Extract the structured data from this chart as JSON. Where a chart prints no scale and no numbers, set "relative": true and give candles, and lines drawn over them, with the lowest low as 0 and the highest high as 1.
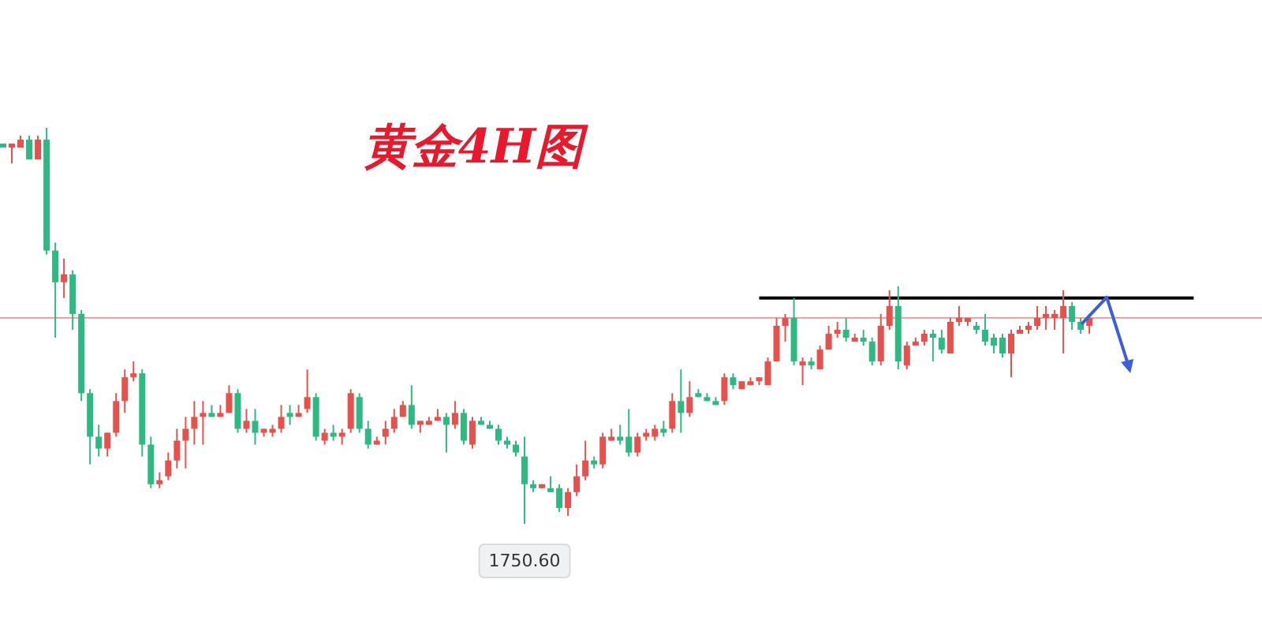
{
  "chart_data": {
    "type": "candlestick",
    "title": "黄金4H图",
    "relative": true,
    "categories": [
      null,
      null,
      null,
      null,
      null,
      null,
      null,
      null,
      null,
      null,
      null,
      null,
      null,
      null,
      null,
      null,
      null,
      null,
      null,
      null,
      null,
      null,
      null,
      null,
      null,
      null,
      null,
      null,
      null,
      null,
      null,
      null,
      null,
      null,
      null,
      null,
      null,
      null,
      null,
      null,
      null,
      null,
      null,
      null,
      null,
      null,
      null,
      null,
      null,
      null,
      null,
      null,
      null,
      null,
      null,
      null,
      null,
      null,
      null,
      null,
      null,
      null,
      null,
      null,
      null,
      null,
      null,
      null,
      null,
      null,
      null,
      null,
      null,
      null,
      null,
      null,
      null,
      null,
      null,
      null,
      null,
      null,
      null,
      null,
      null,
      null,
      null,
      null,
      null,
      null,
      null,
      null,
      null,
      null,
      null,
      null,
      null,
      null,
      null,
      null,
      null,
      null,
      null,
      null,
      null,
      null,
      null,
      null,
      null,
      null,
      null,
      null,
      null,
      null,
      null,
      null,
      null,
      null,
      null,
      null,
      null,
      null,
      null,
      null,
      null,
      null
    ],
    "ohlc": [
      [
        0.96,
        0.96,
        0.95,
        0.95
      ],
      [
        0.95,
        0.96,
        0.91,
        0.96
      ],
      [
        0.95,
        0.98,
        0.95,
        0.97
      ],
      [
        0.97,
        0.98,
        0.92,
        0.92
      ],
      [
        0.92,
        0.98,
        0.92,
        0.97
      ],
      [
        0.97,
        1,
        0.68,
        0.69
      ],
      [
        0.69,
        0.71,
        0.47,
        0.61
      ],
      [
        0.61,
        0.67,
        0.57,
        0.63
      ],
      [
        0.63,
        0.64,
        0.49,
        0.53
      ],
      [
        0.53,
        0.54,
        0.31,
        0.33
      ],
      [
        0.33,
        0.34,
        0.15,
        0.22
      ],
      [
        0.22,
        0.25,
        0.17,
        0.19
      ],
      [
        0.19,
        0.23,
        0.17,
        0.23
      ],
      [
        0.23,
        0.33,
        0.22,
        0.31
      ],
      [
        0.31,
        0.39,
        0.28,
        0.37
      ],
      [
        0.37,
        0.41,
        0.36,
        0.38
      ],
      [
        0.38,
        0.39,
        0.17,
        0.2
      ],
      [
        0.2,
        0.22,
        0.09,
        0.1
      ],
      [
        0.1,
        0.13,
        0.09,
        0.11
      ],
      [
        0.12,
        0.18,
        0.11,
        0.16
      ],
      [
        0.16,
        0.24,
        0.14,
        0.21
      ],
      [
        0.21,
        0.27,
        0.14,
        0.24
      ],
      [
        0.24,
        0.31,
        0.2,
        0.27
      ],
      [
        0.27,
        0.31,
        0.2,
        0.28
      ],
      [
        0.28,
        0.3,
        0.27,
        0.27
      ],
      [
        0.27,
        0.3,
        0.27,
        0.28
      ],
      [
        0.28,
        0.35,
        0.28,
        0.33
      ],
      [
        0.33,
        0.34,
        0.23,
        0.24
      ],
      [
        0.24,
        0.29,
        0.23,
        0.26
      ],
      [
        0.26,
        0.29,
        0.2,
        0.23
      ],
      [
        0.23,
        0.24,
        0.22,
        0.24
      ],
      [
        0.23,
        0.25,
        0.22,
        0.24
      ],
      [
        0.24,
        0.3,
        0.23,
        0.27
      ],
      [
        0.28,
        0.3,
        0.25,
        0.27
      ],
      [
        0.27,
        0.3,
        0.27,
        0.28
      ],
      [
        0.29,
        0.39,
        0.28,
        0.32
      ],
      [
        0.32,
        0.33,
        0.21,
        0.22
      ],
      [
        0.21,
        0.24,
        0.2,
        0.23
      ],
      [
        0.23,
        0.25,
        0.21,
        0.22
      ],
      [
        0.22,
        0.24,
        0.2,
        0.23
      ],
      [
        0.24,
        0.34,
        0.23,
        0.33
      ],
      [
        0.32,
        0.33,
        0.23,
        0.24
      ],
      [
        0.24,
        0.26,
        0.19,
        0.2
      ],
      [
        0.2,
        0.22,
        0.2,
        0.21
      ],
      [
        0.22,
        0.26,
        0.2,
        0.24
      ],
      [
        0.24,
        0.29,
        0.23,
        0.27
      ],
      [
        0.27,
        0.31,
        0.27,
        0.3
      ],
      [
        0.3,
        0.35,
        0.24,
        0.25
      ],
      [
        0.25,
        0.26,
        0.23,
        0.26
      ],
      [
        0.25,
        0.27,
        0.25,
        0.26
      ],
      [
        0.26,
        0.29,
        0.26,
        0.27
      ],
      [
        0.27,
        0.28,
        0.18,
        0.25
      ],
      [
        0.25,
        0.31,
        0.24,
        0.28
      ],
      [
        0.28,
        0.29,
        0.2,
        0.21
      ],
      [
        0.2,
        0.27,
        0.19,
        0.26
      ],
      [
        0.26,
        0.27,
        0.25,
        0.25
      ],
      [
        0.25,
        0.26,
        0.24,
        0.24
      ],
      [
        0.24,
        0.25,
        0.2,
        0.21
      ],
      [
        0.21,
        0.22,
        0.19,
        0.2
      ],
      [
        0.2,
        0.21,
        0.17,
        0.18
      ],
      [
        0.17,
        0.22,
        0,
        0.1
      ],
      [
        0.1,
        0.11,
        0.08,
        0.09
      ],
      [
        0.09,
        0.1,
        0.09,
        0.1
      ],
      [
        0.09,
        0.12,
        0.08,
        0.08
      ],
      [
        0.09,
        0.1,
        0.03,
        0.04
      ],
      [
        0.04,
        0.09,
        0.02,
        0.08
      ],
      [
        0.08,
        0.15,
        0.07,
        0.12
      ],
      [
        0.12,
        0.21,
        0.11,
        0.16
      ],
      [
        0.16,
        0.17,
        0.14,
        0.15
      ],
      [
        0.15,
        0.23,
        0.14,
        0.22
      ],
      [
        0.21,
        0.24,
        0.21,
        0.22
      ],
      [
        0.22,
        0.25,
        0.2,
        0.21
      ],
      [
        0.22,
        0.29,
        0.17,
        0.18
      ],
      [
        0.18,
        0.23,
        0.17,
        0.22
      ],
      [
        0.22,
        0.24,
        0.21,
        0.23
      ],
      [
        0.22,
        0.25,
        0.21,
        0.24
      ],
      [
        0.24,
        0.26,
        0.22,
        0.23
      ],
      [
        0.24,
        0.33,
        0.23,
        0.31
      ],
      [
        0.31,
        0.39,
        0.23,
        0.28
      ],
      [
        0.28,
        0.36,
        0.27,
        0.32
      ],
      [
        0.33,
        0.34,
        0.32,
        0.32
      ],
      [
        0.32,
        0.33,
        0.31,
        0.31
      ],
      [
        0.31,
        0.32,
        0.3,
        0.3
      ],
      [
        0.31,
        0.38,
        0.3,
        0.37
      ],
      [
        0.37,
        0.38,
        0.34,
        0.35
      ],
      [
        0.34,
        0.36,
        0.34,
        0.36
      ],
      [
        0.35,
        0.37,
        0.35,
        0.36
      ],
      [
        0.36,
        0.37,
        0.35,
        0.37
      ],
      [
        0.35,
        0.42,
        0.35,
        0.41
      ],
      [
        0.41,
        0.52,
        0.41,
        0.5
      ],
      [
        0.5,
        0.53,
        0.46,
        0.52
      ],
      [
        0.52,
        0.57,
        0.4,
        0.41
      ],
      [
        0.4,
        0.42,
        0.35,
        0.41
      ],
      [
        0.41,
        0.42,
        0.39,
        0.4
      ],
      [
        0.39,
        0.45,
        0.39,
        0.44
      ],
      [
        0.44,
        0.5,
        0.44,
        0.48
      ],
      [
        0.48,
        0.51,
        0.47,
        0.49
      ],
      [
        0.49,
        0.52,
        0.46,
        0.47
      ],
      [
        0.46,
        0.48,
        0.46,
        0.47
      ],
      [
        0.47,
        0.49,
        0.45,
        0.46
      ],
      [
        0.46,
        0.47,
        0.4,
        0.41
      ],
      [
        0.41,
        0.53,
        0.4,
        0.5
      ],
      [
        0.5,
        0.59,
        0.49,
        0.55
      ],
      [
        0.55,
        0.6,
        0.39,
        0.41
      ],
      [
        0.4,
        0.46,
        0.39,
        0.45
      ],
      [
        0.45,
        0.47,
        0.45,
        0.46
      ],
      [
        0.46,
        0.49,
        0.45,
        0.48
      ],
      [
        0.48,
        0.49,
        0.41,
        0.47
      ],
      [
        0.47,
        0.49,
        0.43,
        0.44
      ],
      [
        0.43,
        0.52,
        0.43,
        0.51
      ],
      [
        0.51,
        0.55,
        0.5,
        0.52
      ],
      [
        0.51,
        0.52,
        0.5,
        0.52
      ],
      [
        0.5,
        0.51,
        0.48,
        0.49
      ],
      [
        0.49,
        0.53,
        0.45,
        0.46
      ],
      [
        0.47,
        0.48,
        0.43,
        0.45
      ],
      [
        0.47,
        0.48,
        0.42,
        0.43
      ],
      [
        0.43,
        0.49,
        0.37,
        0.48
      ],
      [
        0.48,
        0.5,
        0.48,
        0.49
      ],
      [
        0.49,
        0.51,
        0.48,
        0.5
      ],
      [
        0.5,
        0.55,
        0.49,
        0.52
      ],
      [
        0.52,
        0.55,
        0.49,
        0.53
      ],
      [
        0.52,
        0.54,
        0.49,
        0.53
      ],
      [
        0.52,
        0.59,
        0.43,
        0.55
      ],
      [
        0.55,
        0.56,
        0.49,
        0.51
      ],
      [
        0.51,
        0.52,
        0.48,
        0.49
      ],
      [
        0.5,
        0.53,
        0.48,
        0.52
      ]
    ],
    "colors": [
      "#2fb982",
      "#e5514c",
      "#e5514c",
      "#2fb982",
      "#e5514c",
      "#2fb982",
      "#2fb982",
      "#e5514c",
      "#2fb982",
      "#2fb982",
      "#2fb982",
      "#2fb982",
      "#e5514c",
      "#e5514c",
      "#e5514c",
      "#e5514c",
      "#2fb982",
      "#2fb982",
      "#e5514c",
      "#e5514c",
      "#e5514c",
      "#e5514c",
      "#e5514c",
      "#e5514c",
      "#2fb982",
      "#e5514c",
      "#e5514c",
      "#2fb982",
      "#e5514c",
      "#2fb982",
      "#e5514c",
      "#e5514c",
      "#e5514c",
      "#2fb982",
      "#e5514c",
      "#e5514c",
      "#2fb982",
      "#e5514c",
      "#2fb982",
      "#e5514c",
      "#e5514c",
      "#2fb982",
      "#2fb982",
      "#e5514c",
      "#e5514c",
      "#e5514c",
      "#e5514c",
      "#2fb982",
      "#e5514c",
      "#e5514c",
      "#e5514c",
      "#2fb982",
      "#e5514c",
      "#2fb982",
      "#e5514c",
      "#2fb982",
      "#2fb982",
      "#2fb982",
      "#2fb982",
      "#2fb982",
      "#2fb982",
      "#2fb982",
      "#e5514c",
      "#2fb982",
      "#2fb982",
      "#e5514c",
      "#e5514c",
      "#e5514c",
      "#2fb982",
      "#e5514c",
      "#e5514c",
      "#2fb982",
      "#2fb982",
      "#e5514c",
      "#e5514c",
      "#e5514c",
      "#2fb982",
      "#e5514c",
      "#2fb982",
      "#e5514c",
      "#2fb982",
      "#2fb982",
      "#2fb982",
      "#e5514c",
      "#2fb982",
      "#e5514c",
      "#e5514c",
      "#e5514c",
      "#e5514c",
      "#e5514c",
      "#e5514c",
      "#2fb982",
      "#e5514c",
      "#2fb982",
      "#e5514c",
      "#e5514c",
      "#e5514c",
      "#2fb982",
      "#e5514c",
      "#2fb982",
      "#2fb982",
      "#e5514c",
      "#e5514c",
      "#2fb982",
      "#e5514c",
      "#e5514c",
      "#e5514c",
      "#2fb982",
      "#2fb982",
      "#e5514c",
      "#e5514c",
      "#e5514c",
      "#2fb982",
      "#2fb982",
      "#2fb982",
      "#2fb982",
      "#e5514c",
      "#e5514c",
      "#e5514c",
      "#e5514c",
      "#e5514c",
      "#e5514c",
      "#e5514c",
      "#2fb982",
      "#2fb982",
      "#e5514c"
    ],
    "ref_lines": [
      {
        "axis": "y",
        "value": 0.52,
        "color": "#f3a0a0"
      },
      {
        "axis": "y",
        "value": 0.57,
        "color": "#000000",
        "line_style": "solid"
      }
    ],
    "annotations": [
      {
        "text": "1750.60",
        "y": 0
      }
    ]
  }
}
